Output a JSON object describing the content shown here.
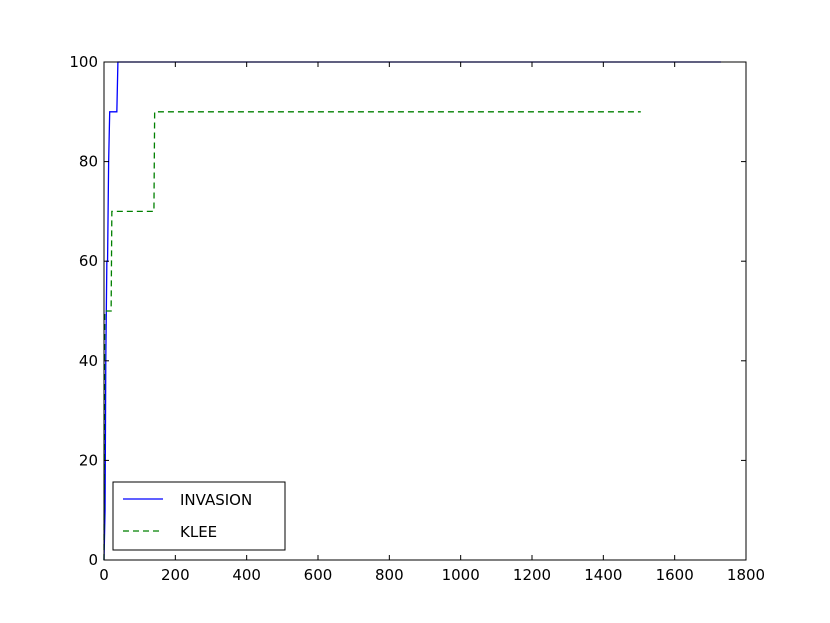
{
  "chart_data": {
    "type": "line",
    "xlim": [
      0,
      1800
    ],
    "ylim": [
      0,
      100
    ],
    "xticks": [
      0,
      200,
      400,
      600,
      800,
      1000,
      1200,
      1400,
      1600,
      1800
    ],
    "yticks": [
      0,
      20,
      40,
      60,
      80,
      100
    ],
    "legend": "lower left",
    "series": [
      {
        "name": "INVASION",
        "color": "#0000ff",
        "style": "solid",
        "x": [
          0,
          3,
          5,
          8,
          10,
          13,
          16,
          18,
          36,
          39,
          1730
        ],
        "values": [
          0,
          10,
          40,
          60,
          60,
          80,
          90,
          90,
          90,
          100,
          100
        ]
      },
      {
        "name": "KLEE",
        "color": "#008000",
        "style": "dashed",
        "x": [
          0,
          2,
          20,
          22,
          140,
          142,
          1505
        ],
        "values": [
          0,
          50,
          50,
          70,
          70,
          90,
          90
        ]
      }
    ]
  }
}
